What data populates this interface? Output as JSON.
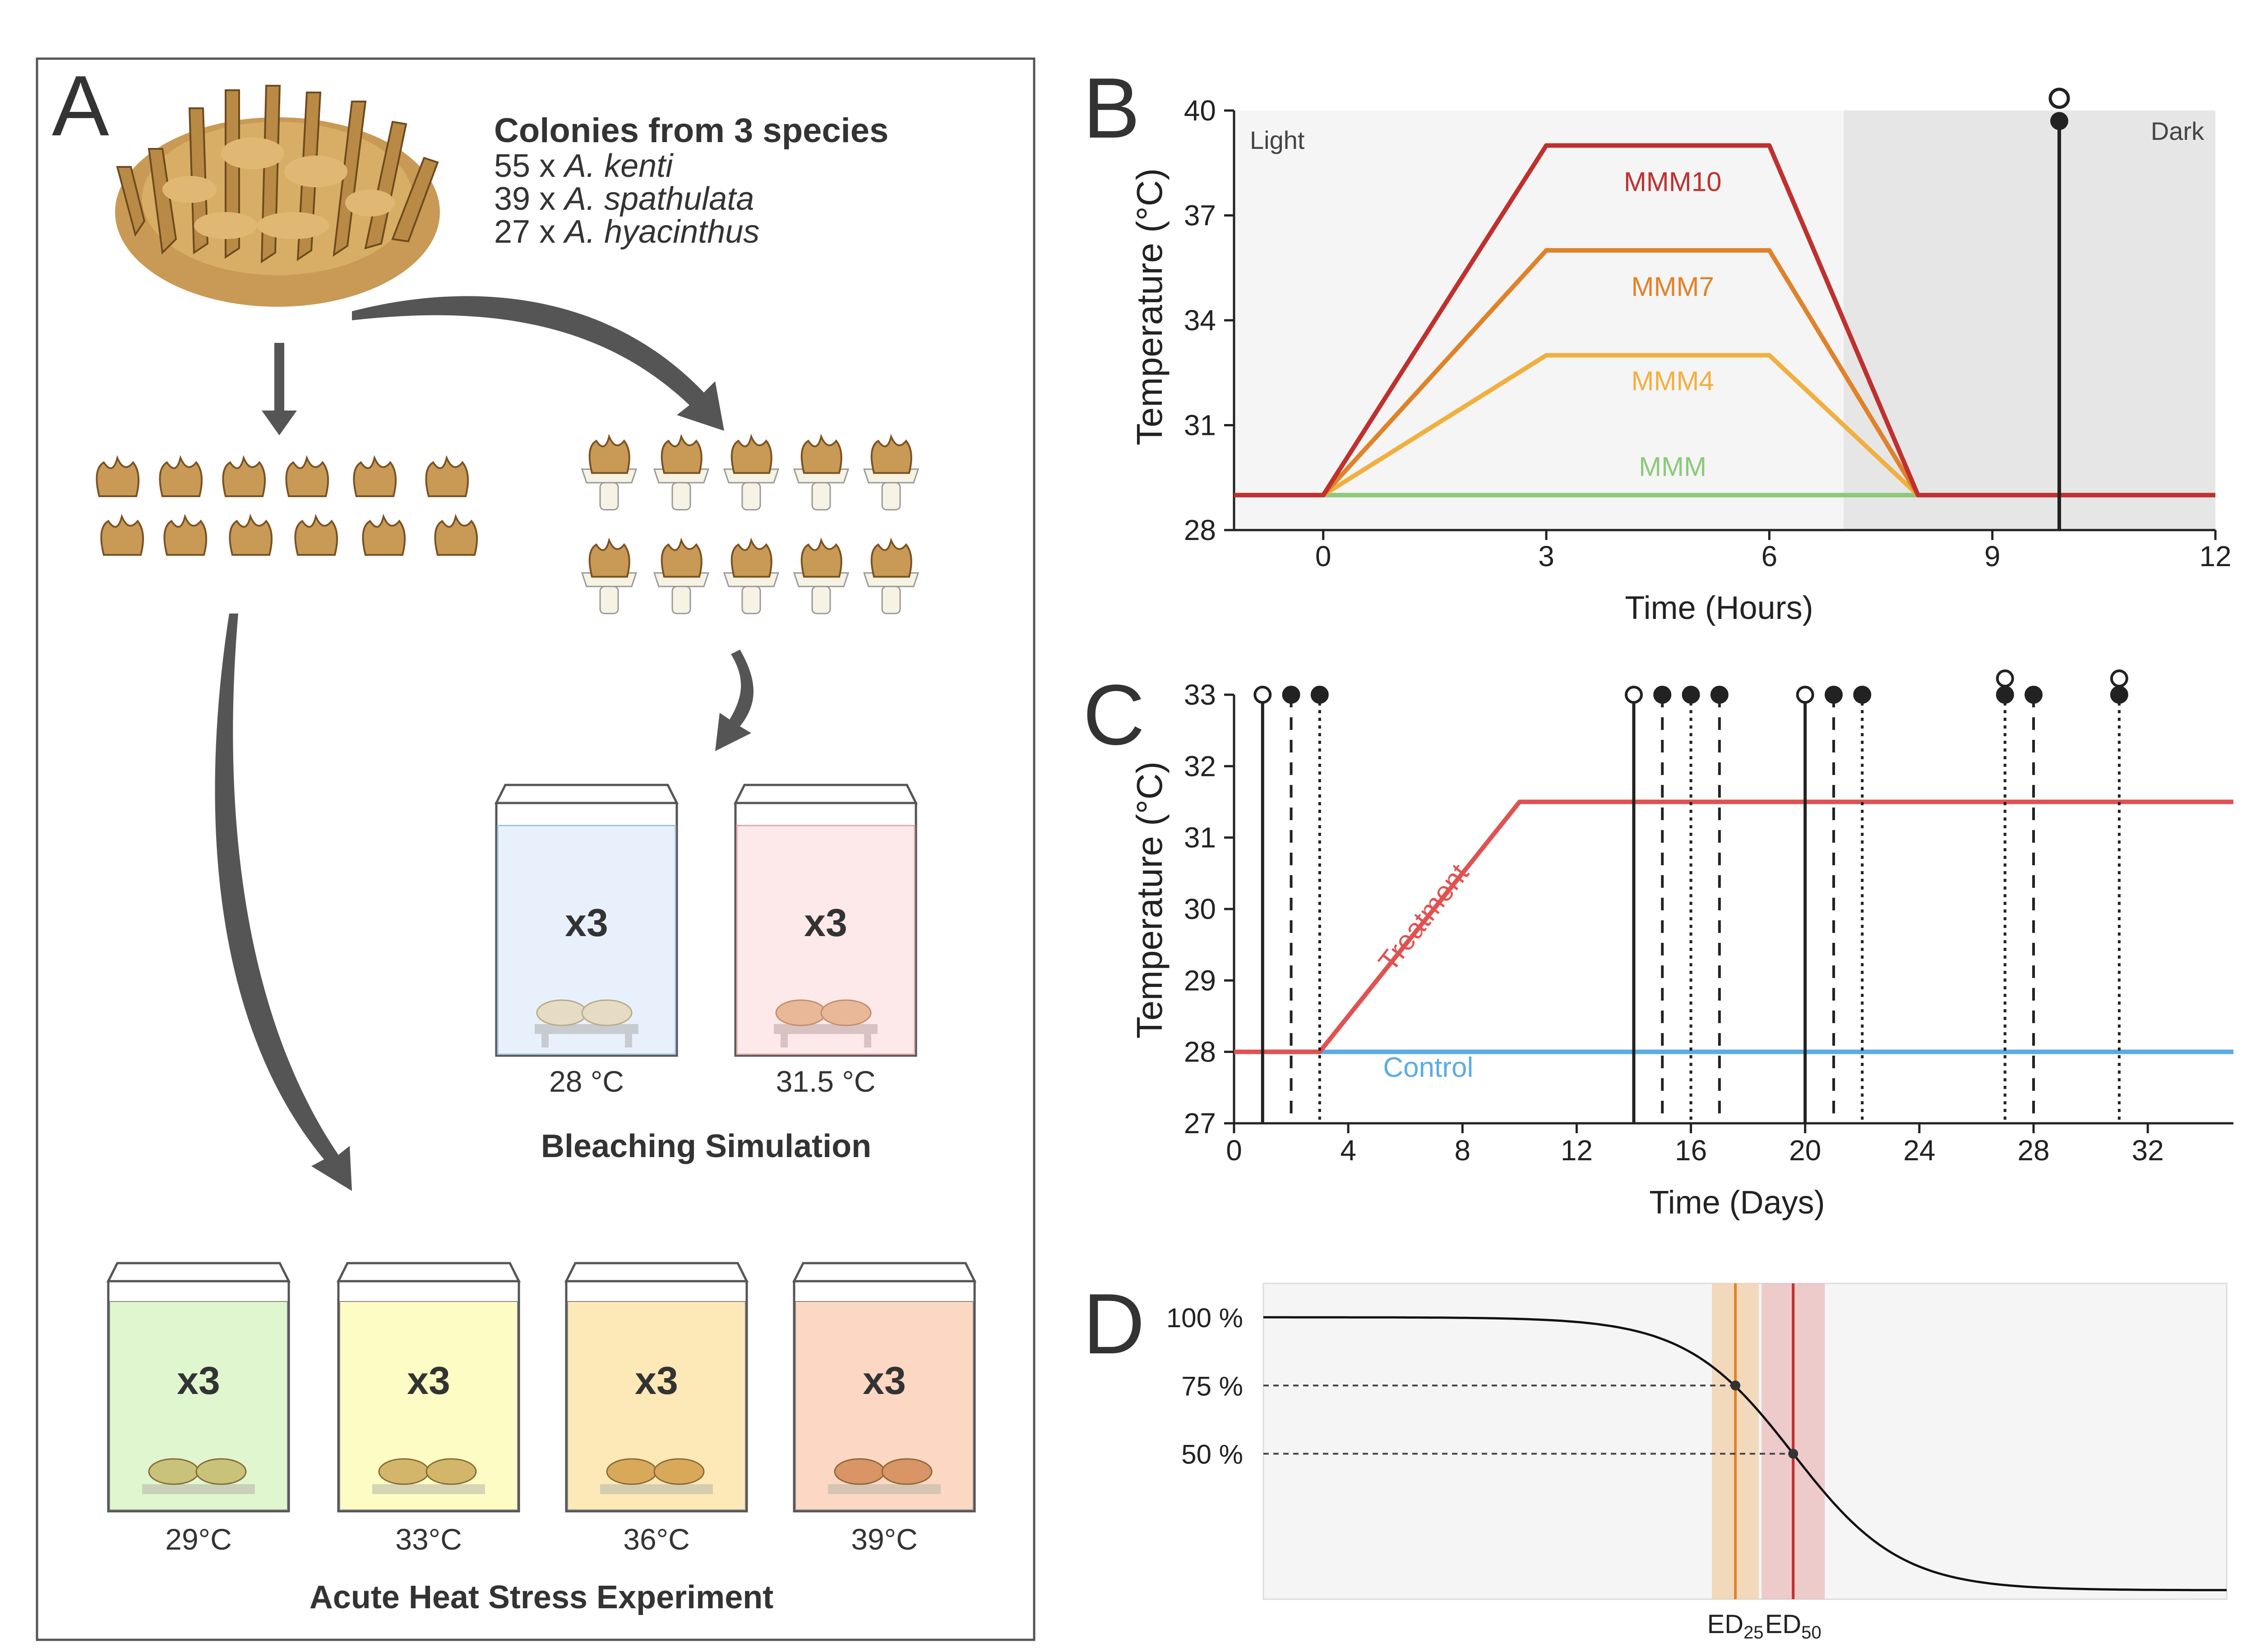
{
  "panelA": {
    "letter": "A",
    "title": "Colonies from 3 species",
    "species": [
      {
        "count": "55 x ",
        "name": "A. kenti"
      },
      {
        "count": "39 x ",
        "name": "A. spathulata"
      },
      {
        "count": "27 x ",
        "name": "A. hyacinthus"
      }
    ],
    "replicate_label": "x3",
    "bleaching": {
      "title": "Bleaching Simulation",
      "tanks": [
        {
          "label": "28 °C",
          "color": "#e8f1fb"
        },
        {
          "label": "31.5 °C",
          "color": "#fde9e9"
        }
      ]
    },
    "acute": {
      "title": "Acute Heat Stress Experiment",
      "tanks": [
        {
          "label": "29°C",
          "color": "#dff6cf"
        },
        {
          "label": "33°C",
          "color": "#fefcc5"
        },
        {
          "label": "36°C",
          "color": "#fde8b8"
        },
        {
          "label": "39°C",
          "color": "#fcd7c3"
        }
      ]
    }
  },
  "panelB": {
    "letter": "B",
    "light_label": "Light",
    "dark_label": "Dark",
    "chart_data": {
      "type": "line",
      "xlabel": "Time (Hours)",
      "ylabel": "Temperature (°C)",
      "xlim": [
        -1.2,
        12
      ],
      "ylim": [
        28,
        40
      ],
      "xticks": [
        0,
        3,
        6,
        9,
        12
      ],
      "yticks": [
        28,
        31,
        34,
        37,
        40
      ],
      "dark_start": 7,
      "series": [
        {
          "name": "MMM",
          "color": "#8cc97a",
          "x": [
            -1.2,
            0,
            8,
            12
          ],
          "y": [
            29,
            29,
            29,
            29
          ]
        },
        {
          "name": "MMM4",
          "color": "#f0b040",
          "x": [
            -1.2,
            0,
            3,
            6,
            8,
            12
          ],
          "y": [
            29,
            29,
            33,
            33,
            29,
            29
          ]
        },
        {
          "name": "MMM7",
          "color": "#e0822a",
          "x": [
            -1.2,
            0,
            3,
            6,
            8,
            12
          ],
          "y": [
            29,
            29,
            36,
            36,
            29,
            29
          ]
        },
        {
          "name": "MMM10",
          "color": "#c0302e",
          "x": [
            -1.2,
            0,
            3,
            6,
            8,
            12
          ],
          "y": [
            29,
            29,
            39,
            39,
            29,
            29
          ]
        }
      ],
      "sampling_time": 9.9
    }
  },
  "panelC": {
    "letter": "C",
    "chart_data": {
      "type": "line",
      "xlabel": "Time (Days)",
      "ylabel": "Temperature (°C)",
      "xlim": [
        0,
        35
      ],
      "ylim": [
        27,
        33
      ],
      "xticks": [
        0,
        4,
        8,
        12,
        16,
        20,
        24,
        28,
        32
      ],
      "yticks": [
        27,
        28,
        29,
        30,
        31,
        32,
        33
      ],
      "series": [
        {
          "name": "Treatment",
          "color": "#e05252",
          "x": [
            1,
            3,
            10,
            35
          ],
          "y": [
            28,
            28,
            31.5,
            31.5
          ]
        },
        {
          "name": "Control",
          "color": "#5aace6",
          "x": [
            3,
            35
          ],
          "y": [
            28,
            28
          ]
        }
      ],
      "sampling_lines": [
        {
          "day": 1,
          "style": "solid",
          "markers": [
            "open"
          ]
        },
        {
          "day": 2,
          "style": "dashed",
          "markers": [
            "filled"
          ]
        },
        {
          "day": 3,
          "style": "dotted",
          "markers": [
            "filled"
          ]
        },
        {
          "day": 14,
          "style": "solid",
          "markers": [
            "open"
          ]
        },
        {
          "day": 15,
          "style": "dashed",
          "markers": [
            "filled"
          ]
        },
        {
          "day": 16,
          "style": "dotted",
          "markers": [
            "filled"
          ]
        },
        {
          "day": 17,
          "style": "dashed",
          "markers": [
            "filled"
          ]
        },
        {
          "day": 20,
          "style": "solid",
          "markers": [
            "open"
          ]
        },
        {
          "day": 21,
          "style": "dashed",
          "markers": [
            "filled"
          ]
        },
        {
          "day": 22,
          "style": "dotted",
          "markers": [
            "filled"
          ]
        },
        {
          "day": 27,
          "style": "dotted",
          "markers": [
            "open",
            "filled"
          ]
        },
        {
          "day": 28,
          "style": "dashed",
          "markers": [
            "filled"
          ]
        },
        {
          "day": 31,
          "style": "dotted",
          "markers": [
            "open",
            "filled"
          ]
        }
      ]
    }
  },
  "panelD": {
    "letter": "D",
    "chart_data": {
      "type": "line",
      "yticks": [
        "100 %",
        "75 %",
        "50 %"
      ],
      "ed25": {
        "label": "ED",
        "sub": "25",
        "value": 0.49
      },
      "ed50": {
        "label": "ED",
        "sub": "50",
        "value": 0.55
      },
      "curve": {
        "midpoint": 0.55,
        "steepness": 18
      }
    }
  }
}
